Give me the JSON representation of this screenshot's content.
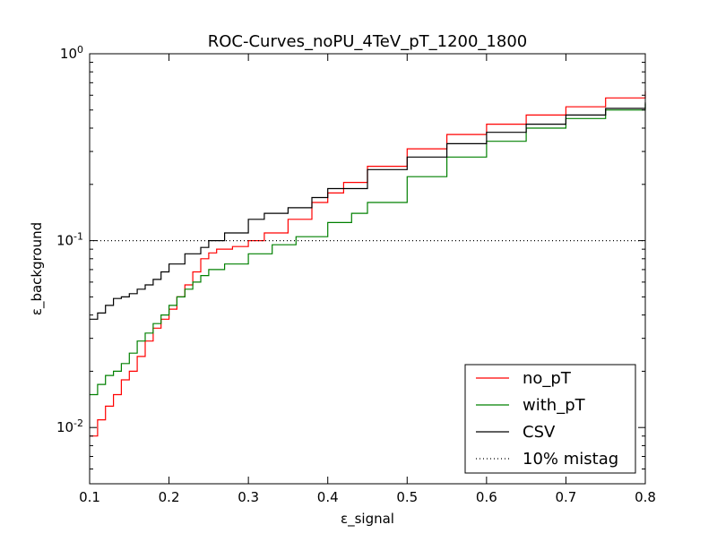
{
  "chart_data": {
    "type": "line",
    "title": "ROC-Curves_noPU_4TeV_pT_1200_1800",
    "xlabel": "ε_signal",
    "ylabel": "ε_background",
    "xlim": [
      0.1,
      0.8
    ],
    "ylim": [
      0.005,
      1.0
    ],
    "yscale": "log",
    "grid": false,
    "legend_position": "lower-right",
    "x_ticks": [
      0.1,
      0.2,
      0.3,
      0.4,
      0.5,
      0.6,
      0.7,
      0.8
    ],
    "x_tick_labels": [
      "0.1",
      "0.2",
      "0.3",
      "0.4",
      "0.5",
      "0.6",
      "0.7",
      "0.8"
    ],
    "y_ticks": [
      {
        "value": 0.01,
        "base": "10",
        "exp": "-2"
      },
      {
        "value": 0.1,
        "base": "10",
        "exp": "-1"
      },
      {
        "value": 1.0,
        "base": "10",
        "exp": "0"
      }
    ],
    "series": [
      {
        "name": "no_pT",
        "color": "#ff0000",
        "style": "solid",
        "x": [
          0.1,
          0.11,
          0.12,
          0.13,
          0.14,
          0.15,
          0.16,
          0.17,
          0.18,
          0.19,
          0.2,
          0.21,
          0.22,
          0.23,
          0.24,
          0.25,
          0.26,
          0.28,
          0.3,
          0.32,
          0.35,
          0.38,
          0.4,
          0.42,
          0.45,
          0.5,
          0.55,
          0.6,
          0.65,
          0.7,
          0.75,
          0.8
        ],
        "y": [
          0.009,
          0.011,
          0.013,
          0.015,
          0.018,
          0.02,
          0.024,
          0.029,
          0.034,
          0.038,
          0.043,
          0.05,
          0.058,
          0.068,
          0.08,
          0.086,
          0.09,
          0.093,
          0.1,
          0.11,
          0.13,
          0.16,
          0.18,
          0.205,
          0.25,
          0.31,
          0.37,
          0.42,
          0.47,
          0.52,
          0.58,
          0.63
        ]
      },
      {
        "name": "with_pT",
        "color": "#008000",
        "style": "solid",
        "x": [
          0.1,
          0.11,
          0.12,
          0.13,
          0.14,
          0.15,
          0.16,
          0.17,
          0.18,
          0.19,
          0.2,
          0.21,
          0.22,
          0.23,
          0.24,
          0.25,
          0.27,
          0.3,
          0.33,
          0.36,
          0.4,
          0.43,
          0.45,
          0.5,
          0.55,
          0.6,
          0.65,
          0.7,
          0.75,
          0.8
        ],
        "y": [
          0.015,
          0.017,
          0.019,
          0.02,
          0.022,
          0.025,
          0.029,
          0.032,
          0.036,
          0.04,
          0.045,
          0.05,
          0.055,
          0.06,
          0.065,
          0.07,
          0.075,
          0.085,
          0.095,
          0.105,
          0.125,
          0.14,
          0.16,
          0.22,
          0.28,
          0.34,
          0.4,
          0.45,
          0.5,
          0.54
        ]
      },
      {
        "name": "CSV",
        "color": "#000000",
        "style": "solid",
        "x": [
          0.1,
          0.11,
          0.12,
          0.13,
          0.14,
          0.15,
          0.16,
          0.17,
          0.18,
          0.19,
          0.2,
          0.22,
          0.24,
          0.25,
          0.27,
          0.3,
          0.32,
          0.35,
          0.38,
          0.4,
          0.45,
          0.5,
          0.55,
          0.6,
          0.65,
          0.7,
          0.75,
          0.8
        ],
        "y": [
          0.038,
          0.041,
          0.045,
          0.049,
          0.05,
          0.052,
          0.055,
          0.058,
          0.062,
          0.068,
          0.075,
          0.085,
          0.092,
          0.1,
          0.11,
          0.13,
          0.14,
          0.15,
          0.17,
          0.19,
          0.24,
          0.28,
          0.33,
          0.38,
          0.42,
          0.47,
          0.51,
          0.55
        ]
      },
      {
        "name": "10% mistag",
        "color": "#000000",
        "style": "dotted",
        "x": [
          0.1,
          0.8
        ],
        "y": [
          0.1,
          0.1
        ]
      }
    ]
  }
}
